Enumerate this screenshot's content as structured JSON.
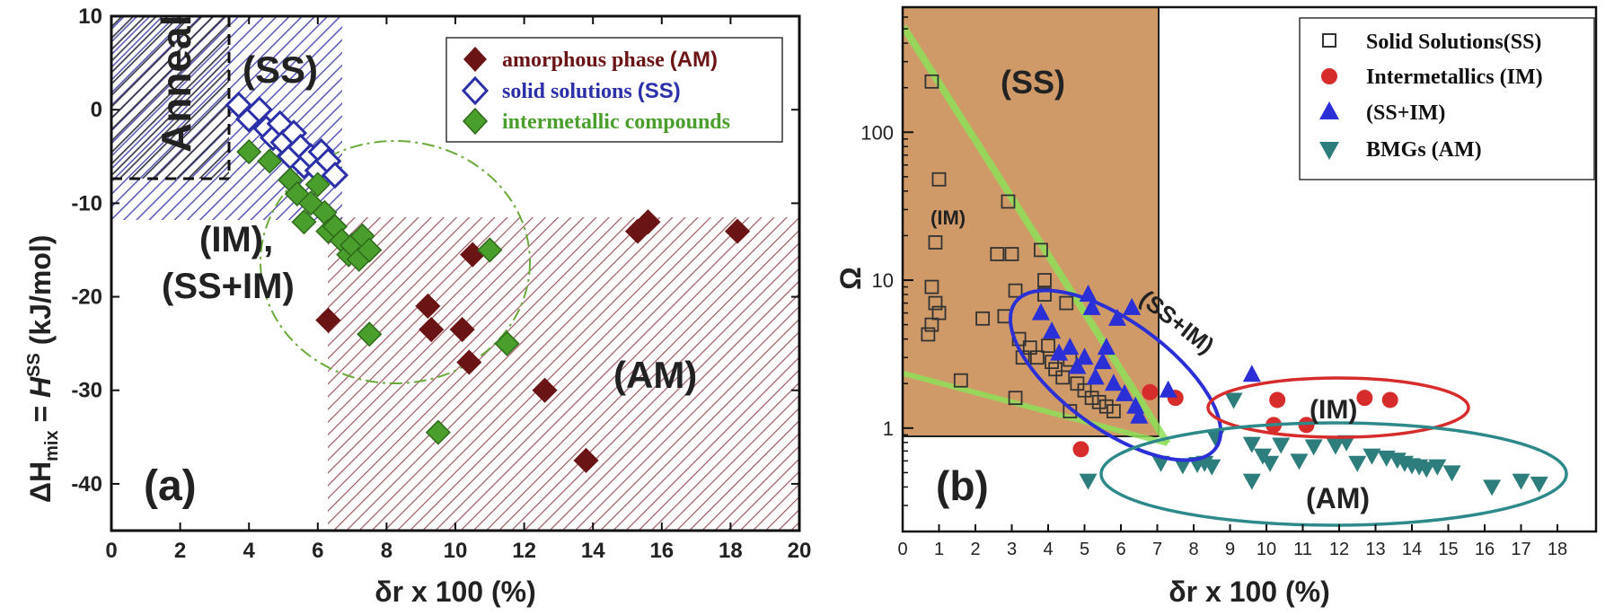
{
  "chart_data": [
    {
      "panel": "(a)",
      "type": "scatter",
      "xlabel": "δr x 100 (%)",
      "ylabel": "ΔH_mix = H^SS (kJ/mol)",
      "ylabel_main": "ΔH",
      "ylabel_sub": "mix",
      "ylabel_mid": " = ",
      "ylabel_h": "H",
      "ylabel_sup": "SS",
      "ylabel_unit": "(kJ/mol)",
      "xlim": [
        0,
        20
      ],
      "ylim": [
        -45,
        10
      ],
      "x_ticks": [
        "0",
        "2",
        "4",
        "6",
        "8",
        "10",
        "12",
        "14",
        "16",
        "18",
        "20"
      ],
      "y_ticks": [
        "10",
        "0",
        "-10",
        "-20",
        "-30",
        "-40"
      ],
      "regions": {
        "anneal": "Anneal",
        "ss": "(SS)",
        "im": "(IM),",
        "ssim": "(SS+IM)",
        "am": "(AM)"
      },
      "legend": [
        {
          "name": "amorphous phase",
          "tag": "(AM)",
          "color": "#6b1416"
        },
        {
          "name": "solid solutions",
          "tag": "(SS)",
          "color": "#2b2fa8"
        },
        {
          "name": "intermetallic compounds",
          "tag": "",
          "color": "#4a9e2c"
        }
      ],
      "series": [
        {
          "name": "amorphous phase (AM)",
          "marker": "diamond-filled",
          "color": "#6b1416",
          "points": [
            [
              6.3,
              -22.5
            ],
            [
              9.2,
              -21
            ],
            [
              9.3,
              -23.5
            ],
            [
              10.2,
              -23.5
            ],
            [
              10.4,
              -27
            ],
            [
              10.5,
              -15.5
            ],
            [
              12.6,
              -30
            ],
            [
              13.8,
              -37.5
            ],
            [
              15.3,
              -13
            ],
            [
              15.6,
              -12
            ],
            [
              18.2,
              -13
            ]
          ]
        },
        {
          "name": "solid solutions (SS)",
          "marker": "diamond-open",
          "color": "#2b2fa8",
          "points": [
            [
              3.7,
              0.5
            ],
            [
              4,
              -1
            ],
            [
              4.3,
              0
            ],
            [
              4.5,
              -2
            ],
            [
              4.7,
              -3
            ],
            [
              4.9,
              -1.5
            ],
            [
              5,
              -3.5
            ],
            [
              5.2,
              -5
            ],
            [
              5.3,
              -2.5
            ],
            [
              5.5,
              -4
            ],
            [
              5.6,
              -6
            ],
            [
              5.8,
              -5
            ],
            [
              6,
              -6.5
            ],
            [
              6.1,
              -4.5
            ],
            [
              6.3,
              -5.5
            ],
            [
              6.5,
              -7
            ]
          ]
        },
        {
          "name": "intermetallic compounds",
          "marker": "diamond-filled",
          "color": "#4a9e2c",
          "points": [
            [
              4,
              -4.5
            ],
            [
              4.6,
              -5.5
            ],
            [
              5.2,
              -7.5
            ],
            [
              5.4,
              -9
            ],
            [
              5.6,
              -12
            ],
            [
              5.8,
              -10
            ],
            [
              6,
              -8
            ],
            [
              6.2,
              -11
            ],
            [
              6.3,
              -13
            ],
            [
              6.5,
              -12.5
            ],
            [
              6.7,
              -14
            ],
            [
              6.9,
              -15.5
            ],
            [
              7,
              -14.5
            ],
            [
              7.2,
              -16
            ],
            [
              7.3,
              -13.5
            ],
            [
              7.5,
              -15
            ],
            [
              7.5,
              -24
            ],
            [
              9.5,
              -34.5
            ],
            [
              11,
              -15
            ],
            [
              11.5,
              -25
            ]
          ]
        }
      ]
    },
    {
      "panel": "(b)",
      "type": "scatter",
      "xlabel": "δr x 100 (%)",
      "ylabel": "Ω",
      "xlim": [
        0,
        18
      ],
      "ylim_log": [
        0.2,
        700
      ],
      "x_ticks": [
        "0",
        "1",
        "2",
        "3",
        "4",
        "5",
        "6",
        "7",
        "8",
        "9",
        "10",
        "11",
        "12",
        "13",
        "14",
        "15",
        "16",
        "17",
        "18"
      ],
      "y_ticks": [
        "1",
        "10",
        "100"
      ],
      "y_tick_values": [
        1,
        10,
        100
      ],
      "regions": {
        "ss": "(SS)",
        "im_green": "(IM)",
        "ssim": "(SS+IM)",
        "im": "(IM)",
        "am": "(AM)"
      },
      "legend": [
        {
          "name": "Solid Solutions(SS)",
          "color": "#333333"
        },
        {
          "name": "Intermetallics (IM)",
          "color": "#d62c2c"
        },
        {
          "name": "(SS+IM)",
          "color": "#2b2fd6"
        },
        {
          "name": "BMGs (AM)",
          "color": "#2e7d7d"
        }
      ],
      "series": [
        {
          "name": "Solid Solutions(SS)",
          "marker": "square-open",
          "color": "#333333",
          "points": [
            [
              0.8,
              220
            ],
            [
              1,
              48
            ],
            [
              0.9,
              18
            ],
            [
              0.8,
              9
            ],
            [
              0.9,
              7
            ],
            [
              1,
              6
            ],
            [
              0.8,
              5
            ],
            [
              0.7,
              4.3
            ],
            [
              1.6,
              2.1
            ],
            [
              2.2,
              5.5
            ],
            [
              2.6,
              15
            ],
            [
              2.8,
              5.7
            ],
            [
              2.9,
              34
            ],
            [
              3,
              15
            ],
            [
              3.1,
              8.5
            ],
            [
              3.2,
              4
            ],
            [
              3.1,
              1.6
            ],
            [
              3.3,
              3
            ],
            [
              3.5,
              3.5
            ],
            [
              3.7,
              3
            ],
            [
              3.8,
              16
            ],
            [
              3.9,
              10
            ],
            [
              3.9,
              8
            ],
            [
              4,
              3.6
            ],
            [
              4.1,
              2.8
            ],
            [
              4.2,
              2.5
            ],
            [
              4.4,
              2.2
            ],
            [
              4.5,
              7
            ],
            [
              4.6,
              2.9
            ],
            [
              4.6,
              1.3
            ],
            [
              4.8,
              2
            ],
            [
              5,
              1.8
            ],
            [
              5.2,
              1.6
            ],
            [
              5.4,
              1.5
            ],
            [
              5.6,
              1.4
            ],
            [
              5.8,
              1.3
            ]
          ]
        },
        {
          "name": "Intermetallics (IM)",
          "marker": "circle",
          "color": "#d62c2c",
          "points": [
            [
              4.9,
              0.72
            ],
            [
              6.8,
              1.75
            ],
            [
              7.5,
              1.6
            ],
            [
              10.3,
              1.55
            ],
            [
              10.2,
              1.05
            ],
            [
              11.1,
              1.05
            ],
            [
              12.7,
              1.6
            ],
            [
              13.4,
              1.55
            ]
          ]
        },
        {
          "name": "(SS+IM)",
          "marker": "triangle-up",
          "color": "#2b2fd6",
          "points": [
            [
              3.8,
              6
            ],
            [
              4.1,
              4.5
            ],
            [
              4.3,
              3.2
            ],
            [
              4.6,
              3.5
            ],
            [
              4.8,
              2.6
            ],
            [
              5,
              3
            ],
            [
              5.1,
              8
            ],
            [
              5.2,
              6.5
            ],
            [
              5.3,
              2.2
            ],
            [
              5.5,
              2.8
            ],
            [
              5.6,
              3.5
            ],
            [
              5.8,
              2
            ],
            [
              5.9,
              5.5
            ],
            [
              6.1,
              1.7
            ],
            [
              6.3,
              6.5
            ],
            [
              6.4,
              1.4
            ],
            [
              6.5,
              1.2
            ],
            [
              7.3,
              1.8
            ],
            [
              9.6,
              2.3
            ]
          ]
        },
        {
          "name": "BMGs (AM)",
          "marker": "triangle-down",
          "color": "#2e7d7d",
          "points": [
            [
              5.1,
              0.44
            ],
            [
              7.1,
              0.58
            ],
            [
              7.7,
              0.56
            ],
            [
              8.1,
              0.57
            ],
            [
              8.3,
              0.58
            ],
            [
              8.5,
              0.55
            ],
            [
              8.6,
              0.86
            ],
            [
              9.1,
              1.55
            ],
            [
              9.6,
              0.78
            ],
            [
              9.9,
              0.65
            ],
            [
              10.1,
              0.58
            ],
            [
              10.4,
              0.77
            ],
            [
              10.9,
              0.6
            ],
            [
              11.3,
              0.75
            ],
            [
              11.9,
              0.76
            ],
            [
              12.2,
              0.8
            ],
            [
              12.5,
              0.58
            ],
            [
              12.9,
              0.65
            ],
            [
              13.3,
              0.63
            ],
            [
              13.6,
              0.61
            ],
            [
              13.8,
              0.58
            ],
            [
              14,
              0.56
            ],
            [
              14.2,
              0.55
            ],
            [
              14.4,
              0.53
            ],
            [
              14.7,
              0.55
            ],
            [
              15.1,
              0.5
            ],
            [
              16.2,
              0.4
            ],
            [
              17,
              0.44
            ],
            [
              17.5,
              0.42
            ],
            [
              9.6,
              0.44
            ]
          ]
        }
      ]
    }
  ]
}
